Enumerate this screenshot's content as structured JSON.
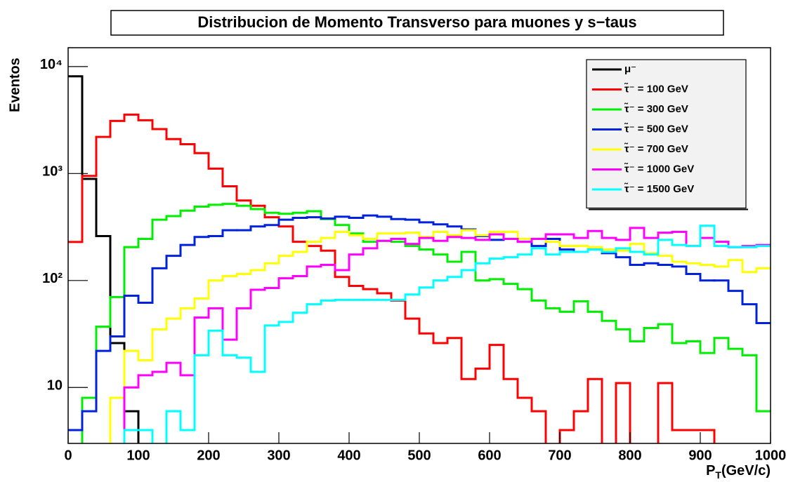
{
  "chart_data": {
    "type": "histogram",
    "title": "Distribucion de Momento Transverso para muones y s−taus",
    "ylabel": "Eventos",
    "xlabel_parts": [
      "P",
      "T",
      "(GeV/c)"
    ],
    "log_y": true,
    "legend": "top-right",
    "bins": [
      0,
      20,
      40,
      60,
      80,
      100,
      120,
      140,
      160,
      180,
      200,
      220,
      240,
      260,
      280,
      300,
      320,
      340,
      360,
      380,
      400,
      420,
      440,
      460,
      480,
      500,
      520,
      540,
      560,
      580,
      600,
      620,
      640,
      660,
      680,
      700,
      720,
      740,
      760,
      780,
      800,
      820,
      840,
      860,
      880,
      900,
      920,
      940,
      960,
      980,
      1000
    ],
    "xlim": [
      0,
      1000
    ],
    "xticks": [
      0,
      100,
      200,
      300,
      400,
      500,
      600,
      700,
      800,
      900,
      1000
    ],
    "ylim": [
      3,
      15000
    ],
    "yticks": [
      {
        "value": 10,
        "label": "10"
      },
      {
        "value": 100,
        "label": "10²"
      },
      {
        "value": 1000,
        "label": "10³"
      },
      {
        "value": 10000,
        "label": "10⁴"
      }
    ],
    "series": [
      {
        "name": "μ⁻",
        "color": "#000000",
        "values": [
          8100,
          890,
          260,
          26,
          6,
          0,
          0,
          0,
          0,
          0,
          0,
          0,
          0,
          0,
          0,
          0,
          0,
          0,
          0,
          0,
          0,
          0,
          0,
          0,
          0,
          0,
          0,
          0,
          0,
          0,
          0,
          0,
          0,
          0,
          0,
          0,
          0,
          0,
          0,
          0,
          0,
          0,
          0,
          0,
          0,
          0,
          0,
          0,
          0,
          0
        ]
      },
      {
        "name": "τ̃⁻ = 100 GeV",
        "color": "#ff0000",
        "values": [
          229,
          950,
          2200,
          3100,
          3550,
          3150,
          2600,
          2100,
          1880,
          1550,
          1110,
          760,
          560,
          500,
          390,
          320,
          230,
          210,
          190,
          108,
          89,
          83,
          76,
          65,
          44,
          32,
          26,
          29,
          12,
          15,
          25,
          12,
          8,
          6,
          0,
          4,
          6,
          12,
          0,
          11,
          0,
          0,
          11,
          4,
          4,
          4,
          0,
          0,
          0,
          0
        ]
      },
      {
        "name": "τ̃⁻ = 300 GeV",
        "color": "#00ee00",
        "values": [
          0,
          8,
          37,
          70,
          205,
          245,
          370,
          400,
          450,
          490,
          510,
          520,
          500,
          465,
          430,
          420,
          430,
          445,
          375,
          330,
          275,
          230,
          235,
          230,
          210,
          195,
          175,
          150,
          185,
          100,
          103,
          93,
          83,
          65,
          55,
          51,
          64,
          51,
          42,
          35,
          27,
          36,
          39,
          26,
          27,
          21,
          29,
          23,
          20,
          6
        ]
      },
      {
        "name": "τ̃⁻ = 500 GeV",
        "color": "#0022dd",
        "values": [
          4,
          6,
          22,
          30,
          72,
          62,
          130,
          170,
          215,
          255,
          260,
          295,
          295,
          320,
          330,
          370,
          385,
          390,
          380,
          395,
          385,
          405,
          395,
          375,
          370,
          350,
          335,
          320,
          300,
          260,
          240,
          245,
          230,
          210,
          245,
          195,
          185,
          195,
          180,
          165,
          140,
          145,
          140,
          135,
          115,
          100,
          100,
          80,
          60,
          40
        ]
      },
      {
        "name": "τ̃⁻ = 700 GeV",
        "color": "#ffff00",
        "values": [
          0,
          0,
          0,
          8,
          22,
          18,
          35,
          44,
          55,
          68,
          100,
          110,
          115,
          125,
          145,
          170,
          185,
          230,
          250,
          285,
          265,
          245,
          275,
          275,
          280,
          255,
          285,
          265,
          295,
          265,
          285,
          285,
          245,
          245,
          230,
          210,
          210,
          205,
          195,
          190,
          220,
          180,
          170,
          150,
          145,
          140,
          135,
          155,
          120,
          130
        ]
      },
      {
        "name": "τ̃⁻ = 1000 GeV",
        "color": "#ff00ff",
        "values": [
          0,
          0,
          0,
          0,
          10,
          13,
          14,
          17,
          13,
          45,
          55,
          28,
          55,
          82,
          85,
          105,
          110,
          135,
          140,
          125,
          175,
          200,
          235,
          245,
          220,
          250,
          235,
          255,
          250,
          240,
          270,
          245,
          230,
          245,
          270,
          270,
          250,
          290,
          250,
          240,
          310,
          250,
          280,
          285,
          210,
          250,
          230,
          205,
          210,
          215
        ]
      },
      {
        "name": "τ̃⁻ = 1500 GeV",
        "color": "#00ffff",
        "values": [
          0,
          0,
          0,
          0,
          4,
          4,
          0,
          6,
          4,
          20,
          34,
          20,
          19,
          14,
          38,
          41,
          50,
          60,
          65,
          66,
          66,
          66,
          66,
          66,
          74,
          86,
          100,
          108,
          125,
          145,
          160,
          165,
          175,
          200,
          175,
          185,
          185,
          195,
          185,
          200,
          185,
          175,
          240,
          215,
          210,
          325,
          210,
          205,
          205,
          210
        ]
      }
    ]
  }
}
